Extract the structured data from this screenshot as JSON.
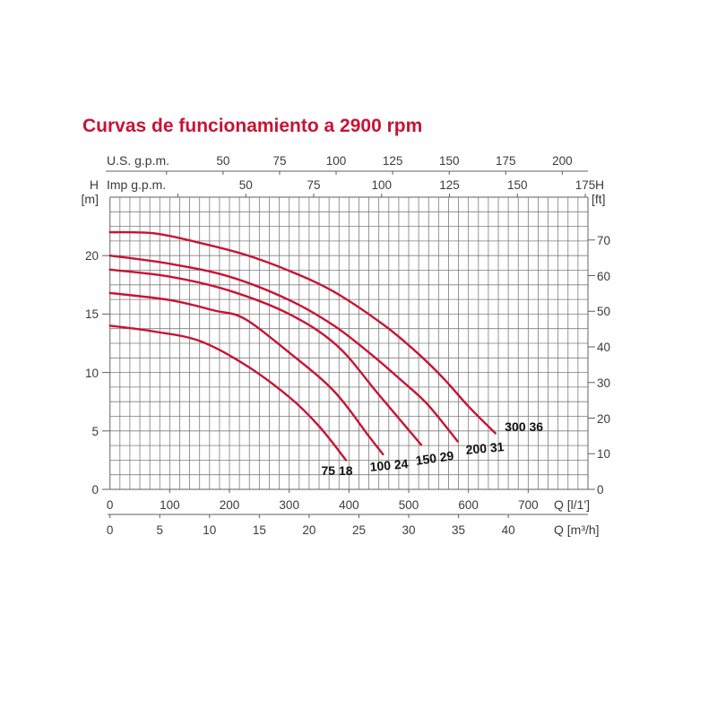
{
  "title": "Curvas de funcionamiento a 2900 rpm",
  "colors": {
    "accent": "#c81333",
    "curve": "#c81333",
    "grid": "#7d7d7d",
    "frame": "#5f5f5f",
    "tick_text": "#3b3b3b",
    "curve_label_text": "#101010"
  },
  "axes": {
    "us_gpm": {
      "label": "U.S. g.p.m.",
      "ticks": [
        50,
        75,
        100,
        125,
        150,
        175,
        200
      ]
    },
    "imp_gpm": {
      "label": "Imp g.p.m.",
      "ticks": [
        50,
        75,
        100,
        125,
        150,
        175
      ]
    },
    "h_m": {
      "label": "H",
      "unit": "[m]",
      "ticks": [
        0,
        5,
        10,
        15,
        20
      ]
    },
    "h_ft": {
      "label": "H",
      "unit": "[ft]",
      "ticks": [
        0,
        10,
        20,
        30,
        40,
        50,
        60,
        70
      ]
    },
    "q_lmin": {
      "label": "Q [l/1']",
      "ticks": [
        0,
        100,
        200,
        300,
        400,
        500,
        600,
        700
      ]
    },
    "q_m3h": {
      "label": "Q [m³/h]",
      "ticks": [
        0,
        5,
        10,
        15,
        20,
        25,
        30,
        35,
        40
      ]
    }
  },
  "chart_data": {
    "type": "line",
    "title": "Curvas de funcionamiento a 2900 rpm",
    "xlabel": "Q [l/1']",
    "ylabel": "H [m]",
    "x_unit": "l/min",
    "y_unit": "m",
    "xlim": [
      0,
      800
    ],
    "ylim": [
      0,
      25
    ],
    "grid": "on",
    "legend_position": "curve-end-labels",
    "series": [
      {
        "name": "300 36",
        "label_at": [
          693,
          5.4
        ],
        "label_rot": 0,
        "points": [
          [
            0,
            22.0
          ],
          [
            75,
            21.9
          ],
          [
            150,
            21.1
          ],
          [
            225,
            20.1
          ],
          [
            300,
            18.7
          ],
          [
            375,
            16.9
          ],
          [
            460,
            14.0
          ],
          [
            516,
            11.6
          ],
          [
            560,
            9.4
          ],
          [
            600,
            7.1
          ],
          [
            645,
            4.8
          ]
        ]
      },
      {
        "name": "200 31",
        "label_at": [
          627,
          3.5
        ],
        "label_rot": -5,
        "points": [
          [
            0,
            20.0
          ],
          [
            100,
            19.3
          ],
          [
            200,
            18.2
          ],
          [
            300,
            16.2
          ],
          [
            375,
            14.0
          ],
          [
            436,
            11.6
          ],
          [
            486,
            9.4
          ],
          [
            531,
            7.3
          ],
          [
            582,
            4.1
          ]
        ]
      },
      {
        "name": "150 29",
        "label_at": [
          543,
          2.7
        ],
        "label_rot": -8,
        "points": [
          [
            0,
            18.8
          ],
          [
            100,
            18.2
          ],
          [
            200,
            17.0
          ],
          [
            300,
            15.0
          ],
          [
            380,
            12.3
          ],
          [
            450,
            8.1
          ],
          [
            521,
            3.8
          ]
        ]
      },
      {
        "name": "100 24",
        "label_at": [
          467,
          2.1
        ],
        "label_rot": -5,
        "points": [
          [
            0,
            16.8
          ],
          [
            100,
            16.2
          ],
          [
            175,
            15.3
          ],
          [
            225,
            14.6
          ],
          [
            300,
            11.7
          ],
          [
            375,
            8.4
          ],
          [
            434,
            4.5
          ],
          [
            457,
            3.0
          ]
        ]
      },
      {
        "name": "75 18",
        "label_at": [
          380,
          1.6
        ],
        "label_rot": 0,
        "points": [
          [
            0,
            14.0
          ],
          [
            75,
            13.5
          ],
          [
            150,
            12.7
          ],
          [
            225,
            10.7
          ],
          [
            300,
            7.9
          ],
          [
            350,
            5.4
          ],
          [
            395,
            2.5
          ]
        ]
      }
    ]
  }
}
